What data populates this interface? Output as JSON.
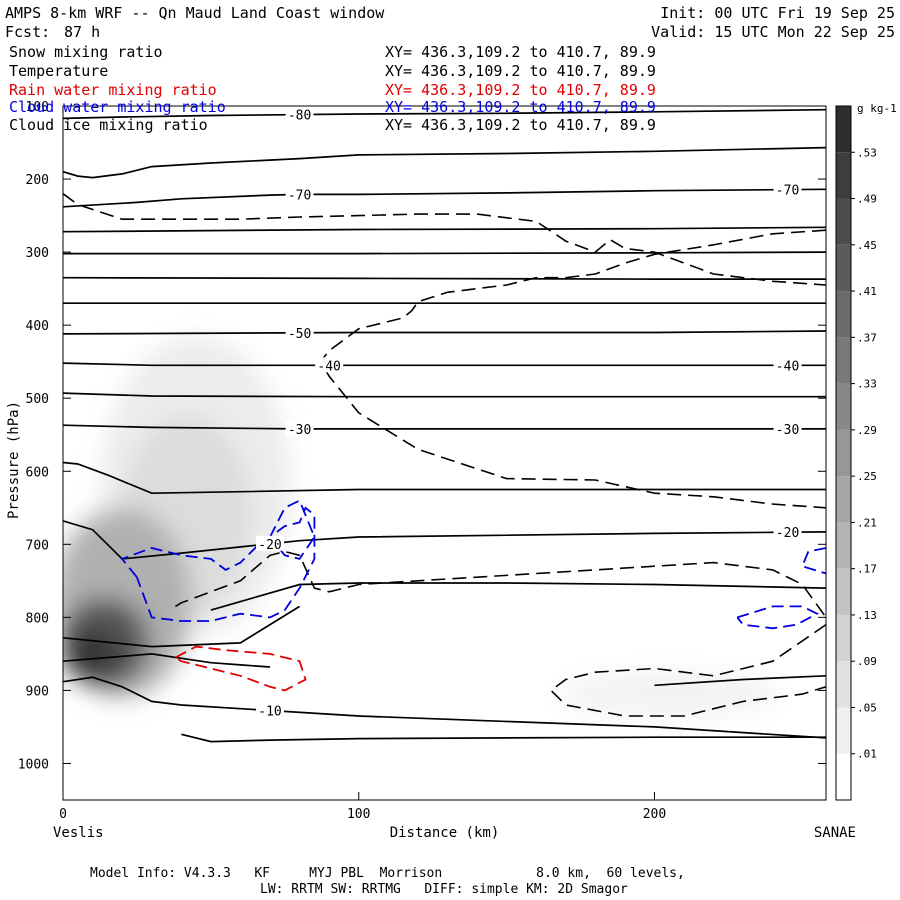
{
  "header": {
    "title": "AMPS 8-km WRF -- Qn Maud Land Coast window",
    "init": "Init: 00 UTC Fri 19 Sep 25",
    "fcst_label": "Fcst:",
    "fcst_value": "87 h",
    "valid": "Valid: 15 UTC Mon 22 Sep 25"
  },
  "fields": [
    {
      "name": "Snow mixing ratio",
      "xy": "XY= 436.3,109.2 to 410.7, 89.9",
      "color": "#000000"
    },
    {
      "name": "Temperature",
      "xy": "XY= 436.3,109.2 to 410.7, 89.9",
      "color": "#000000"
    },
    {
      "name": "Rain water mixing ratio",
      "xy": "XY= 436.3,109.2 to 410.7, 89.9",
      "color": "#e00000"
    },
    {
      "name": "Cloud water mixing ratio",
      "xy": "XY= 436.3,109.2 to 410.7, 89.9",
      "color": "#0000e0"
    },
    {
      "name": "Cloud ice mixing ratio",
      "xy": "XY= 436.3,109.2 to 410.7, 89.9",
      "color": "#000000"
    }
  ],
  "footer": {
    "line1": "Model Info: V4.3.3   KF     MYJ PBL  Morrison            8.0 km,  60 levels,",
    "line2": "LW: RRTM SW: RRTMG   DIFF: simple KM: 2D Smagor"
  },
  "chart_data": {
    "type": "cross-section",
    "xlabel": "Distance (km)",
    "ylabel": "Pressure (hPa)",
    "x_start_label": "Veslis",
    "x_end_label": "SANAE",
    "xlim": [
      0,
      258
    ],
    "ylim": [
      1050,
      100
    ],
    "x_ticks": [
      0,
      100,
      200
    ],
    "y_ticks": [
      100,
      200,
      300,
      400,
      500,
      600,
      700,
      800,
      900,
      1000
    ],
    "colorbar": {
      "unit": "g kg-1",
      "labels": [
        ".01",
        ".05",
        ".09",
        ".13",
        ".17",
        ".21",
        ".25",
        ".29",
        ".33",
        ".37",
        ".41",
        ".45",
        ".49",
        ".53"
      ],
      "low_color": "#ffffff",
      "high_color": "#2e2e2e"
    },
    "snow_maxima": [
      {
        "x": 18,
        "p": 850,
        "value": 0.55
      },
      {
        "x": 45,
        "p": 640,
        "value": 0.07
      },
      {
        "x": 200,
        "p": 905,
        "value": 0.04
      }
    ],
    "temperature_isotherms": [
      {
        "label": "-80",
        "x": [
          0,
          20,
          50,
          100,
          150,
          200,
          258
        ],
        "p": [
          117,
          115,
          113,
          111,
          110,
          108,
          105
        ]
      },
      {
        "label": "",
        "x": [
          0,
          5,
          10,
          20,
          30,
          50,
          80,
          100,
          150,
          200,
          258
        ],
        "p": [
          190,
          196,
          198,
          193,
          183,
          178,
          172,
          167,
          165,
          162,
          157
        ]
      },
      {
        "label": "-70",
        "x": [
          0,
          25,
          40,
          70,
          80,
          100,
          150,
          200,
          258
        ],
        "p": [
          238,
          232,
          227,
          222,
          221,
          221,
          219,
          216,
          214
        ]
      },
      {
        "label": "",
        "x": [
          0,
          100,
          200,
          258
        ],
        "p": [
          272,
          269,
          268,
          266
        ]
      },
      {
        "label": "",
        "x": [
          0,
          100,
          200,
          258
        ],
        "p": [
          302,
          302,
          301,
          300
        ]
      },
      {
        "label": "",
        "x": [
          0,
          100,
          200,
          258
        ],
        "p": [
          335,
          336,
          337,
          337
        ]
      },
      {
        "label": "",
        "x": [
          0,
          100,
          200,
          258
        ],
        "p": [
          370,
          370,
          370,
          370
        ]
      },
      {
        "label": "-50",
        "x": [
          0,
          100,
          200,
          258
        ],
        "p": [
          412,
          410,
          410,
          408
        ]
      },
      {
        "label": "-40",
        "x": [
          0,
          30,
          100,
          200,
          258
        ],
        "p": [
          452,
          455,
          455,
          455,
          455
        ]
      },
      {
        "label": "",
        "x": [
          0,
          30,
          100,
          200,
          258
        ],
        "p": [
          493,
          497,
          498,
          498,
          498
        ]
      },
      {
        "label": "-30",
        "x": [
          0,
          30,
          80,
          100,
          200,
          258
        ],
        "p": [
          537,
          540,
          542,
          542,
          542,
          542
        ]
      },
      {
        "label": "",
        "x": [
          0,
          5,
          15,
          30,
          60,
          100,
          150,
          200,
          258
        ],
        "p": [
          588,
          590,
          605,
          630,
          628,
          625,
          625,
          625,
          625
        ]
      },
      {
        "label": "-20",
        "x": [
          0,
          10,
          20,
          40,
          80,
          100,
          200,
          258
        ],
        "p": [
          668,
          680,
          720,
          712,
          695,
          690,
          685,
          683
        ]
      },
      {
        "label": "",
        "x": [
          50,
          80,
          100,
          150,
          200,
          258
        ],
        "p": [
          790,
          755,
          753,
          753,
          755,
          760
        ]
      },
      {
        "label": "",
        "x": [
          0,
          30,
          60,
          80
        ],
        "p": [
          828,
          840,
          835,
          785
        ]
      },
      {
        "label": "",
        "x": [
          0,
          30,
          50,
          60,
          70
        ],
        "p": [
          860,
          850,
          862,
          865,
          868
        ]
      },
      {
        "label": "-10",
        "x": [
          0,
          10,
          20,
          30,
          40,
          100,
          200,
          258
        ],
        "p": [
          888,
          882,
          895,
          915,
          920,
          935,
          950,
          965
        ]
      },
      {
        "label": "",
        "x": [
          200,
          230,
          258
        ],
        "p": [
          893,
          885,
          880
        ]
      },
      {
        "label": "",
        "x": [
          40,
          50,
          70,
          100,
          200,
          258
        ],
        "p": [
          960,
          970,
          968,
          966,
          964,
          964
        ]
      }
    ],
    "cloud_ice_contours": [
      {
        "x": [
          0,
          5,
          20,
          40,
          60,
          80,
          100,
          120,
          140,
          160,
          170,
          180,
          185,
          190,
          200,
          220,
          240,
          258
        ],
        "p": [
          220,
          235,
          255,
          255,
          255,
          252,
          250,
          248,
          248,
          258,
          285,
          300,
          283,
          295,
          300,
          330,
          340,
          345
        ]
      },
      {
        "x": [
          258,
          240,
          220,
          200,
          190,
          180,
          170,
          160,
          150,
          140,
          130,
          120,
          118,
          115,
          100,
          90,
          87,
          90,
          100,
          120,
          150,
          180,
          200,
          220,
          240,
          258
        ],
        "p": [
          270,
          275,
          290,
          303,
          315,
          330,
          335,
          335,
          345,
          350,
          355,
          368,
          380,
          390,
          405,
          435,
          450,
          470,
          520,
          570,
          610,
          612,
          630,
          635,
          645,
          650
        ]
      },
      {
        "x": [
          38,
          40,
          60,
          70,
          75,
          80,
          85,
          90,
          100,
          120,
          140,
          160,
          180,
          200,
          220,
          240,
          250,
          258
        ],
        "p": [
          785,
          780,
          750,
          715,
          710,
          715,
          760,
          765,
          755,
          750,
          745,
          740,
          735,
          730,
          725,
          735,
          755,
          800
        ]
      },
      {
        "x": [
          258,
          240,
          220,
          200,
          180,
          170,
          165,
          170,
          190,
          210,
          220,
          230,
          250,
          258
        ],
        "p": [
          810,
          860,
          880,
          870,
          875,
          885,
          900,
          920,
          935,
          935,
          925,
          915,
          905,
          895
        ]
      }
    ],
    "cloud_water_contours": [
      {
        "x": [
          25,
          20,
          30,
          40,
          50,
          55,
          60,
          65,
          70,
          75,
          80,
          82,
          85,
          85,
          80,
          75,
          70,
          60,
          50,
          40,
          30,
          25
        ],
        "p": [
          745,
          720,
          705,
          715,
          720,
          735,
          725,
          705,
          690,
          675,
          670,
          650,
          660,
          720,
          760,
          790,
          800,
          795,
          805,
          805,
          800,
          745
        ]
      },
      {
        "x": [
          70,
          75,
          80,
          85,
          80,
          75,
          70
        ],
        "p": [
          690,
          650,
          640,
          690,
          720,
          715,
          690
        ]
      },
      {
        "x": [
          228,
          240,
          250,
          255,
          248,
          240,
          230,
          228
        ],
        "p": [
          800,
          785,
          785,
          795,
          810,
          815,
          810,
          800
        ]
      },
      {
        "x": [
          258,
          252,
          250,
          258
        ],
        "p": [
          705,
          710,
          730,
          740
        ]
      }
    ],
    "rain_water_contours": [
      {
        "x": [
          38,
          45,
          55,
          70,
          80,
          82,
          75,
          70,
          60,
          50,
          40,
          38
        ],
        "p": [
          855,
          840,
          845,
          850,
          860,
          885,
          900,
          895,
          880,
          870,
          860,
          855
        ]
      }
    ]
  }
}
